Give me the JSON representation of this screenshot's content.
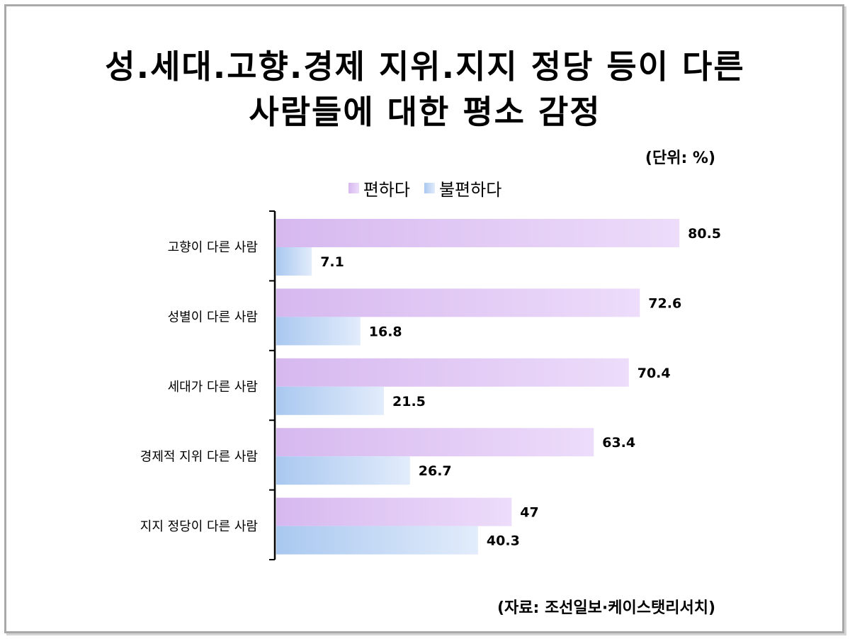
{
  "title_line1": "성.세대.고향.경제 지위.지지 정당 등이 다른",
  "title_line2": "사람들에 대한 평소 감정",
  "unit": "(단위: %)",
  "source": "(자료: 조선일보·케이스탯리서치)",
  "chart_data": {
    "type": "bar",
    "orientation": "horizontal",
    "title": "성.세대.고향.경제 지위.지지 정당 등이 다른 사람들에 대한 평소 감정",
    "categories": [
      "고향이 다른 사람",
      "성별이 다른 사람",
      "세대가 다른 사람",
      "경제적 지위 다른 사람",
      "지지 정당이 다른 사람"
    ],
    "series": [
      {
        "name": "편하다",
        "values": [
          80.5,
          72.6,
          70.4,
          63.4,
          47
        ],
        "labels": [
          "80.5",
          "72.6",
          "70.4",
          "63.4",
          "47"
        ],
        "colors": [
          "#d6b8ef",
          "#eddcfa"
        ]
      },
      {
        "name": "불편하다",
        "values": [
          7.1,
          16.8,
          21.5,
          26.7,
          40.3
        ],
        "labels": [
          "7.1",
          "16.8",
          "21.5",
          "26.7",
          "40.3"
        ],
        "colors": [
          "#a9c8f0",
          "#e2ecfb"
        ]
      }
    ],
    "legend": "top-center",
    "grid": false,
    "xlim": [
      0,
      100
    ]
  }
}
